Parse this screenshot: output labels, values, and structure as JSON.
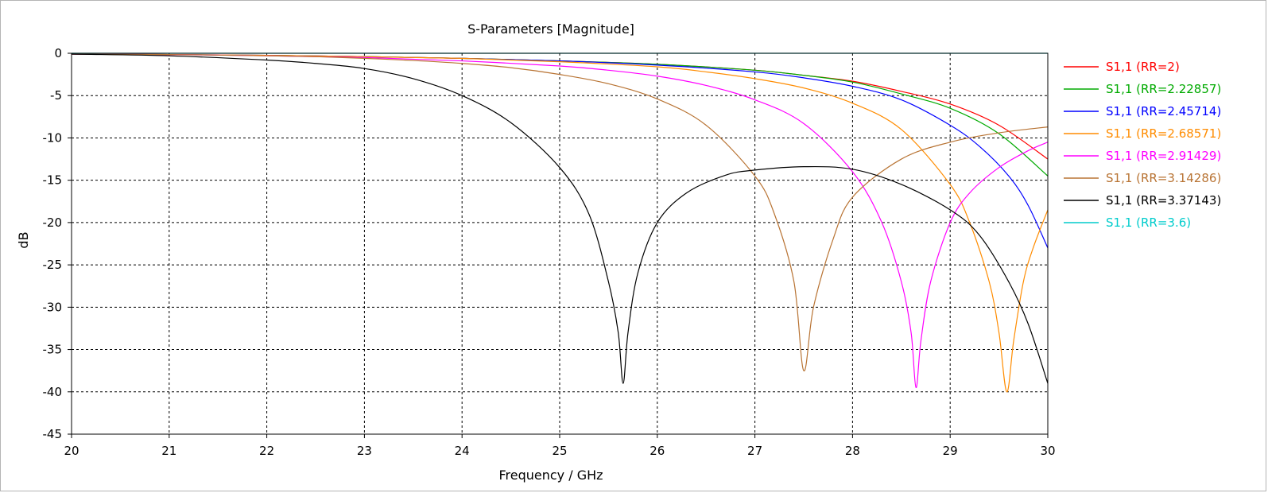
{
  "chart_data": {
    "type": "line",
    "title": "S-Parameters [Magnitude]",
    "xlabel": "Frequency / GHz",
    "ylabel": "dB",
    "xlim": [
      20,
      30
    ],
    "ylim": [
      -45,
      0
    ],
    "xticks": [
      "20",
      "21",
      "22",
      "23",
      "24",
      "25",
      "26",
      "27",
      "28",
      "29",
      "30"
    ],
    "yticks": [
      "0",
      "-5",
      "-10",
      "-15",
      "-20",
      "-25",
      "-30",
      "-35",
      "-40",
      "-45"
    ],
    "grid": true,
    "legend_position": "right",
    "series": [
      {
        "name": "S1,1 (RR=2)",
        "color": "#ff0000",
        "x": [
          20,
          21,
          22,
          23,
          24,
          25,
          26,
          27,
          27.5,
          28,
          28.5,
          29,
          29.5,
          30
        ],
        "y": [
          -0.1,
          -0.15,
          -0.25,
          -0.4,
          -0.6,
          -0.9,
          -1.3,
          -2.0,
          -2.6,
          -3.3,
          -4.5,
          -6.0,
          -8.5,
          -12.5
        ]
      },
      {
        "name": "S1,1 (RR=2.22857)",
        "color": "#00aa00",
        "x": [
          20,
          21,
          22,
          23,
          24,
          25,
          26,
          27,
          27.5,
          28,
          28.5,
          29,
          29.5,
          30
        ],
        "y": [
          -0.1,
          -0.15,
          -0.25,
          -0.4,
          -0.6,
          -0.9,
          -1.3,
          -2.0,
          -2.6,
          -3.4,
          -4.8,
          -6.5,
          -9.5,
          -14.5
        ]
      },
      {
        "name": "S1,1 (RR=2.45714)",
        "color": "#0000ff",
        "x": [
          20,
          21,
          22,
          23,
          24,
          25,
          26,
          27,
          27.5,
          28,
          28.5,
          29,
          29.3,
          29.6,
          29.8,
          30
        ],
        "y": [
          -0.1,
          -0.15,
          -0.25,
          -0.4,
          -0.6,
          -0.9,
          -1.4,
          -2.2,
          -2.9,
          -3.9,
          -5.5,
          -8.5,
          -11.0,
          -14.5,
          -18.0,
          -23.0
        ]
      },
      {
        "name": "S1,1 (RR=2.68571)",
        "color": "#ff8c00",
        "x": [
          20,
          21,
          22,
          23,
          24,
          25,
          26,
          26.5,
          27,
          27.5,
          28,
          28.5,
          29,
          29.2,
          29.4,
          29.5,
          29.58,
          29.65,
          29.75,
          29.85,
          30
        ],
        "y": [
          -0.1,
          -0.15,
          -0.25,
          -0.4,
          -0.6,
          -1.0,
          -1.6,
          -2.2,
          -3.0,
          -4.1,
          -5.9,
          -9.0,
          -15.5,
          -20.0,
          -27.0,
          -33.0,
          -40.0,
          -34.0,
          -27.0,
          -23.0,
          -18.5
        ]
      },
      {
        "name": "S1,1 (RR=2.91429)",
        "color": "#ff00ff",
        "x": [
          20,
          21,
          22,
          23,
          24,
          25,
          25.5,
          26,
          26.5,
          27,
          27.5,
          28,
          28.3,
          28.5,
          28.6,
          28.65,
          28.7,
          28.8,
          29,
          29.2,
          29.5,
          29.8,
          30
        ],
        "y": [
          -0.1,
          -0.15,
          -0.3,
          -0.5,
          -0.9,
          -1.5,
          -2.0,
          -2.7,
          -3.8,
          -5.5,
          -8.3,
          -14.0,
          -20.0,
          -27.0,
          -33.0,
          -39.5,
          -34.0,
          -27.0,
          -20.0,
          -16.5,
          -13.5,
          -11.5,
          -10.5
        ]
      },
      {
        "name": "S1,1 (RR=3.14286)",
        "color": "#b87333",
        "x": [
          20,
          21,
          22,
          22.5,
          23,
          23.5,
          24,
          24.5,
          25,
          25.5,
          26,
          26.5,
          27,
          27.2,
          27.4,
          27.5,
          27.6,
          27.8,
          28,
          28.5,
          29,
          29.5,
          30
        ],
        "y": [
          -0.1,
          -0.15,
          -0.3,
          -0.4,
          -0.6,
          -0.85,
          -1.2,
          -1.7,
          -2.5,
          -3.6,
          -5.4,
          -8.5,
          -14.5,
          -19.0,
          -27.0,
          -37.5,
          -30.0,
          -22.0,
          -17.0,
          -12.5,
          -10.5,
          -9.4,
          -8.7
        ]
      },
      {
        "name": "S1,1 (RR=3.37143)",
        "color": "#000000",
        "x": [
          20,
          21,
          22,
          22.5,
          23,
          23.5,
          24,
          24.5,
          25,
          25.3,
          25.5,
          25.6,
          25.65,
          25.7,
          25.8,
          26,
          26.3,
          26.7,
          27,
          27.5,
          28,
          28.5,
          29,
          29.3,
          29.6,
          29.8,
          30
        ],
        "y": [
          -0.1,
          -0.3,
          -0.8,
          -1.2,
          -1.8,
          -3.0,
          -5.0,
          -8.2,
          -13.5,
          -19.0,
          -27.0,
          -33.0,
          -39.0,
          -33.0,
          -26.0,
          -20.0,
          -16.5,
          -14.4,
          -13.8,
          -13.4,
          -13.7,
          -15.5,
          -18.5,
          -21.5,
          -27.0,
          -32.0,
          -39.0
        ]
      },
      {
        "name": "S1,1 (RR=3.6)",
        "color": "#00cccc",
        "x": [
          20,
          25,
          30
        ],
        "y": [
          0,
          0,
          0
        ]
      }
    ]
  }
}
